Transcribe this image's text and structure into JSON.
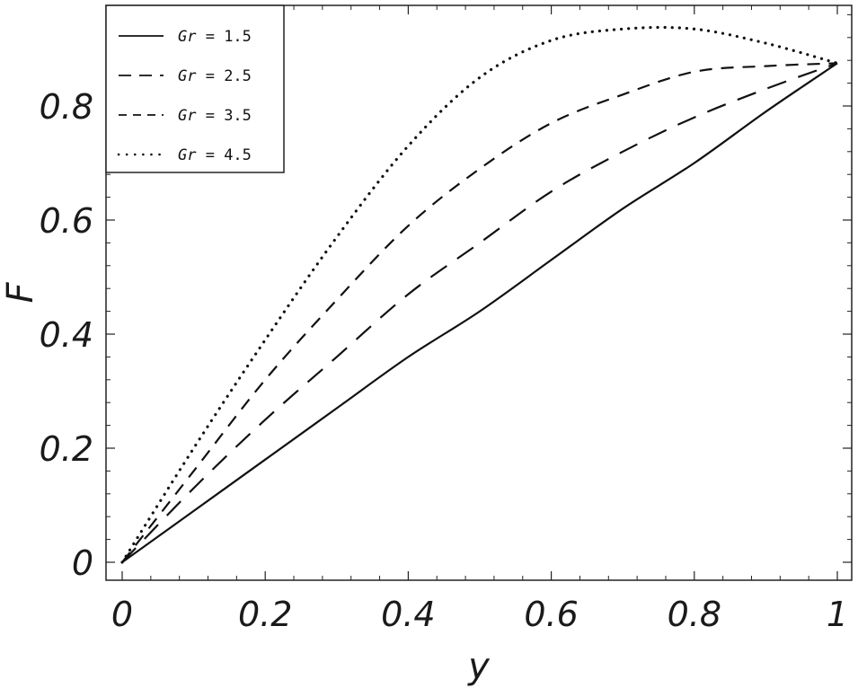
{
  "chart_data": {
    "type": "line",
    "title": "",
    "xlabel": "y",
    "ylabel": "F",
    "xlim": [
      0,
      1
    ],
    "ylim": [
      -0.02,
      0.955
    ],
    "xticks": [
      "0",
      "0.2",
      "0.4",
      "0.6",
      "0.8",
      "1"
    ],
    "xtick_values": [
      0,
      0.2,
      0.4,
      0.6,
      0.8,
      1
    ],
    "yticks": [
      "0",
      "0.2",
      "0.4",
      "0.6",
      "0.8"
    ],
    "ytick_values": [
      0,
      0.2,
      0.4,
      0.6,
      0.8
    ],
    "grid": false,
    "legend_position": "top-left",
    "x": [
      0,
      0.1,
      0.2,
      0.3,
      0.4,
      0.5,
      0.6,
      0.7,
      0.8,
      0.9,
      1.0
    ],
    "series": [
      {
        "name": "Gr = 1.5",
        "legend_var": "Gr",
        "legend_value": "= 1.5",
        "dash": "solid",
        "values": [
          0,
          0.09,
          0.18,
          0.27,
          0.36,
          0.44,
          0.53,
          0.62,
          0.7,
          0.79,
          0.875
        ]
      },
      {
        "name": "Gr = 2.5",
        "legend_var": "Gr",
        "legend_value": "= 2.5",
        "dash": "long-dash",
        "values": [
          0,
          0.13,
          0.25,
          0.36,
          0.47,
          0.56,
          0.65,
          0.72,
          0.78,
          0.83,
          0.875
        ]
      },
      {
        "name": "Gr = 3.5",
        "legend_var": "Gr",
        "legend_value": "= 3.5",
        "dash": "short-dash",
        "values": [
          0,
          0.16,
          0.32,
          0.46,
          0.59,
          0.69,
          0.77,
          0.82,
          0.86,
          0.87,
          0.875
        ]
      },
      {
        "name": "Gr = 4.5",
        "legend_var": "Gr",
        "legend_value": "= 4.5",
        "dash": "dotted",
        "values": [
          0,
          0.2,
          0.39,
          0.57,
          0.73,
          0.85,
          0.915,
          0.935,
          0.935,
          0.91,
          0.875
        ]
      }
    ]
  }
}
